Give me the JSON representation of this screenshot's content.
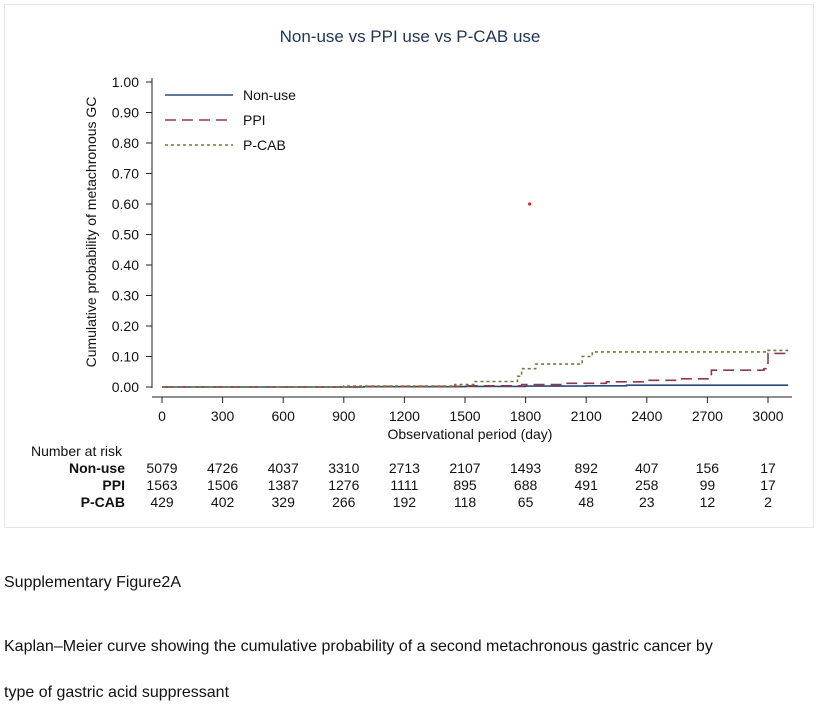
{
  "chart_data": {
    "type": "line",
    "title": "Non-use vs PPI use vs P-CAB use",
    "xlabel": "Observational period (day)",
    "ylabel": "Cumulative probability of metachronous GC",
    "xlim": [
      0,
      3100
    ],
    "ylim": [
      0,
      1
    ],
    "xticks": [
      "0",
      "300",
      "600",
      "900",
      "1200",
      "1500",
      "1800",
      "2100",
      "2400",
      "2700",
      "3000"
    ],
    "xtick_values": [
      0,
      300,
      600,
      900,
      1200,
      1500,
      1800,
      2100,
      2400,
      2700,
      3000
    ],
    "yticks": [
      "0.00",
      "0.10",
      "0.20",
      "0.30",
      "0.40",
      "0.50",
      "0.60",
      "0.70",
      "0.80",
      "0.90",
      "1.00"
    ],
    "ytick_values": [
      0,
      0.1,
      0.2,
      0.3,
      0.4,
      0.5,
      0.6,
      0.7,
      0.8,
      0.9,
      1.0
    ],
    "grid": false,
    "legend_position": "top-left",
    "series": [
      {
        "name": "Non-use",
        "color": "#2b4a7a",
        "dash": "solid",
        "points": [
          [
            0,
            0
          ],
          [
            1000,
            0.001
          ],
          [
            1500,
            0.002
          ],
          [
            1800,
            0.003
          ],
          [
            2100,
            0.004
          ],
          [
            2300,
            0.006
          ],
          [
            3100,
            0.006
          ]
        ]
      },
      {
        "name": "PPI",
        "color": "#8a3a4a",
        "dash": "dash",
        "points": [
          [
            0,
            0
          ],
          [
            1000,
            0.002
          ],
          [
            1500,
            0.004
          ],
          [
            1780,
            0.008
          ],
          [
            2000,
            0.012
          ],
          [
            2200,
            0.017
          ],
          [
            2400,
            0.022
          ],
          [
            2550,
            0.027
          ],
          [
            2720,
            0.055
          ],
          [
            2980,
            0.06
          ],
          [
            3000,
            0.11
          ],
          [
            3100,
            0.11
          ]
        ]
      },
      {
        "name": "P-CAB",
        "color": "#6e7a3a",
        "dash": "dot",
        "points": [
          [
            0,
            0
          ],
          [
            900,
            0.003
          ],
          [
            1450,
            0.008
          ],
          [
            1550,
            0.018
          ],
          [
            1760,
            0.035
          ],
          [
            1780,
            0.06
          ],
          [
            1850,
            0.075
          ],
          [
            2080,
            0.1
          ],
          [
            2130,
            0.115
          ],
          [
            2980,
            0.115
          ],
          [
            3000,
            0.12
          ],
          [
            3100,
            0.12
          ]
        ]
      }
    ],
    "annotations": [
      {
        "type": "point",
        "x": 1820,
        "y": 0.6,
        "color": "#dd2222"
      }
    ],
    "risk_table": {
      "title": "Number at risk",
      "rows": [
        {
          "label": "Non-use",
          "values": [
            "5079",
            "4726",
            "4037",
            "3310",
            "2713",
            "2107",
            "1493",
            "892",
            "407",
            "156",
            "17"
          ]
        },
        {
          "label": "PPI",
          "values": [
            "1563",
            "1506",
            "1387",
            "1276",
            "1111",
            "895",
            "688",
            "491",
            "258",
            "99",
            "17"
          ]
        },
        {
          "label": "P-CAB",
          "values": [
            "429",
            "402",
            "329",
            "266",
            "192",
            "118",
            "65",
            "48",
            "23",
            "12",
            "2"
          ]
        }
      ]
    }
  },
  "caption": {
    "figure_label": "Supplementary Figure2A",
    "text_line1": "Kaplan–Meier curve showing the cumulative probability of a second metachronous gastric cancer by",
    "text_line2": "type of gastric acid suppressant"
  }
}
